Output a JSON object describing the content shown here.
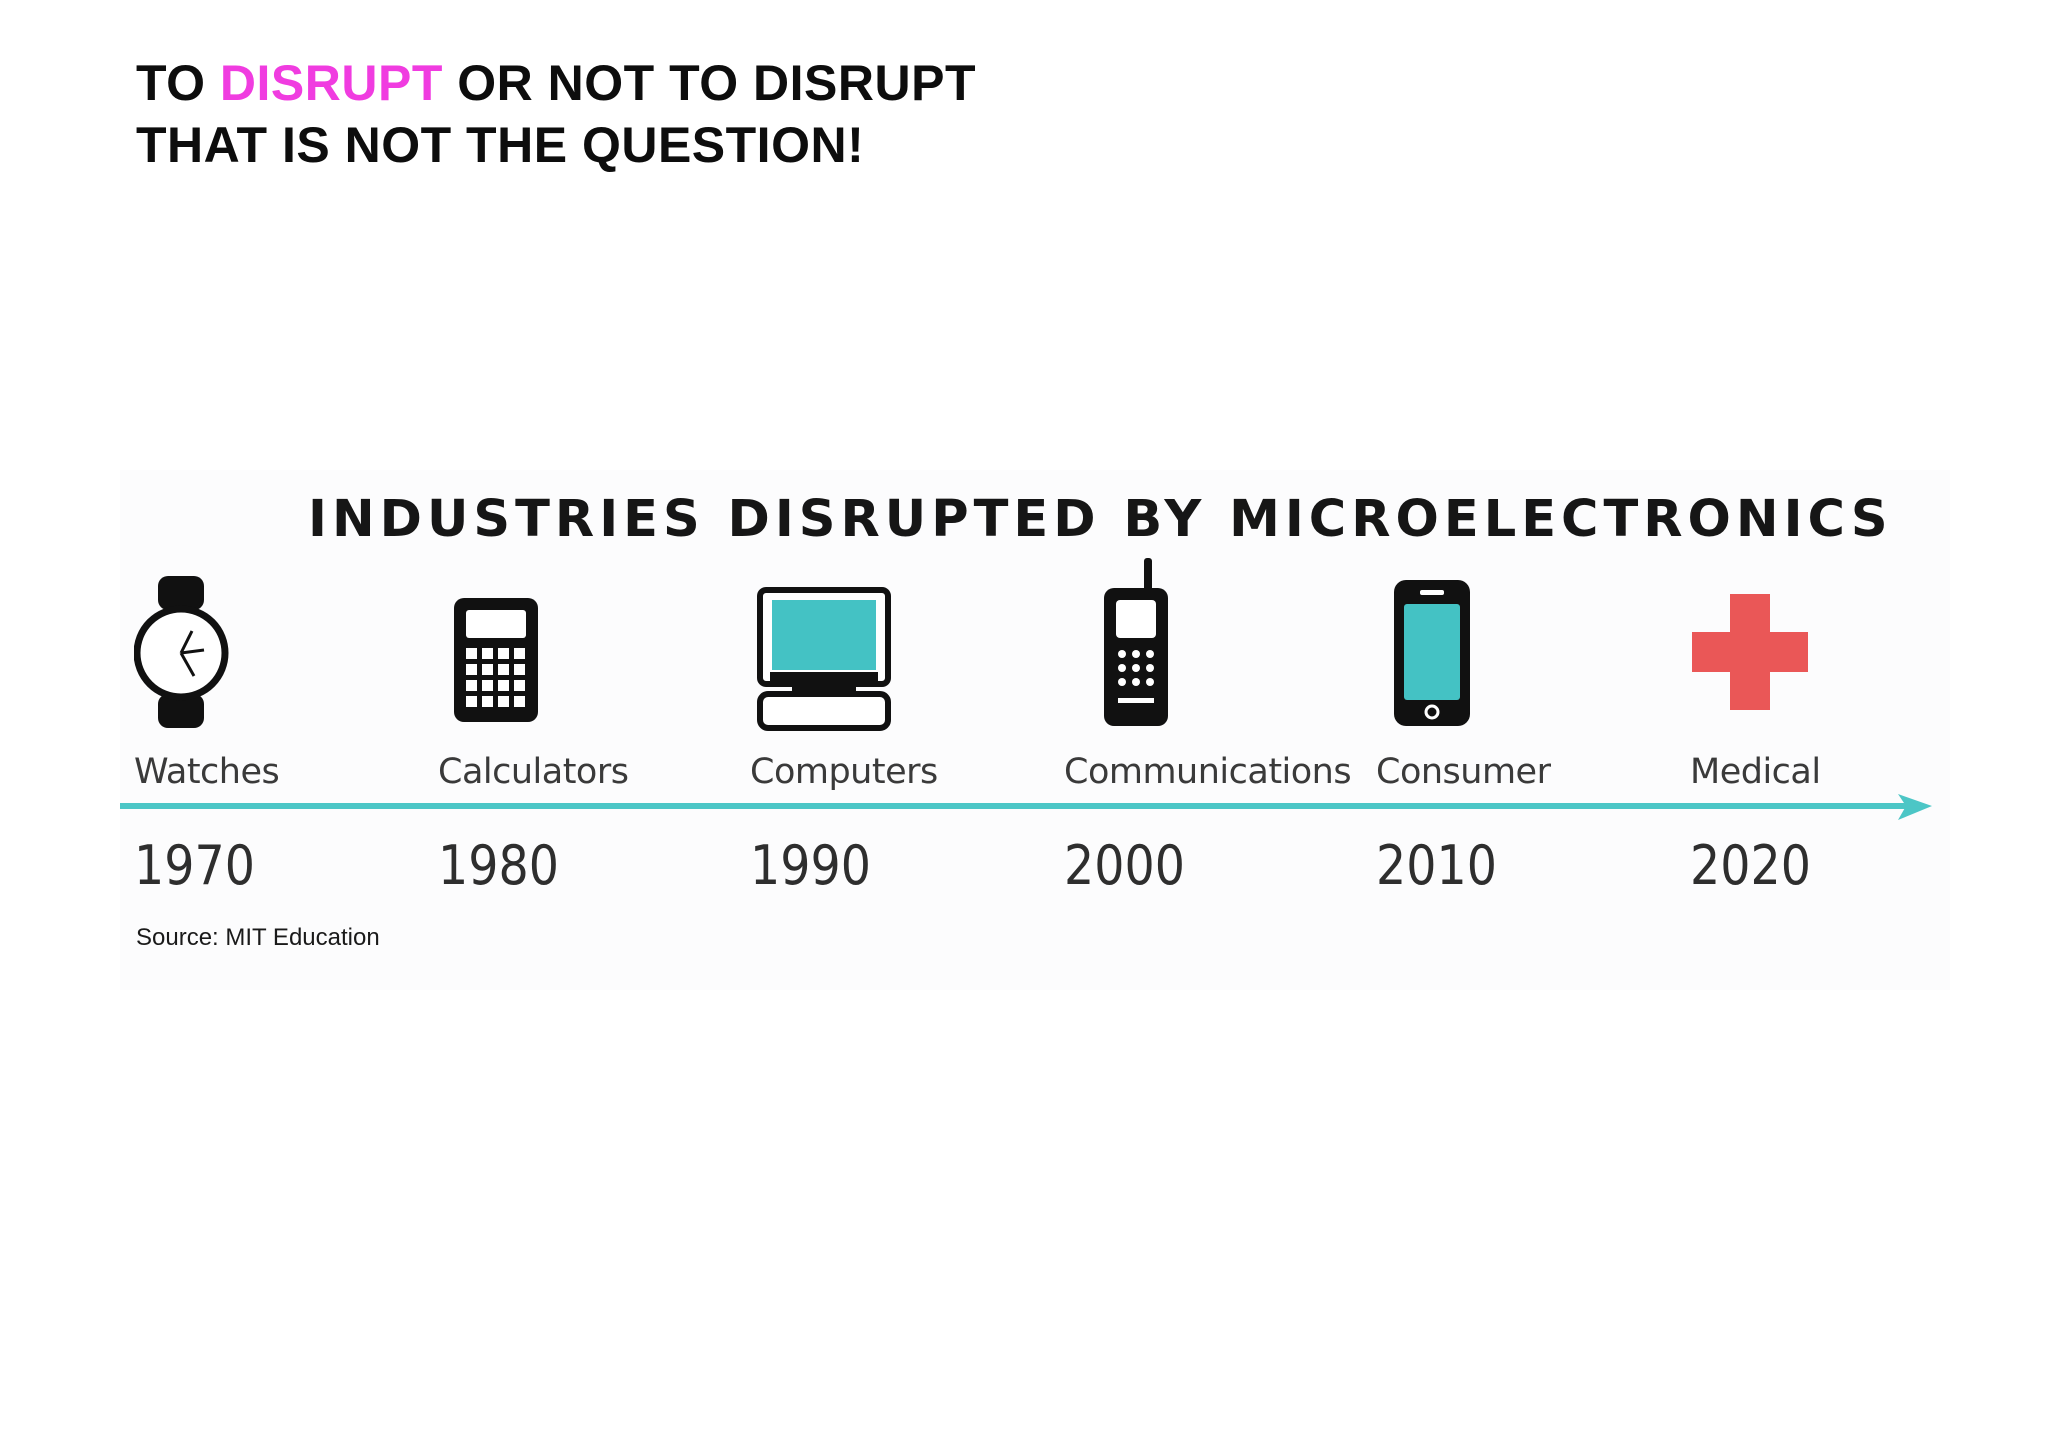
{
  "headline": {
    "line1_pre": "TO ",
    "line1_accent": "DISRUPT",
    "line1_post": " OR NOT TO DISRUPT",
    "line2": "THAT IS NOT THE QUESTION!"
  },
  "graphic": {
    "title": "INDUSTRIES DISRUPTED BY MICROELECTRONICS",
    "milestones": [
      {
        "label": "Watches",
        "year": "1970",
        "icon": "watch-icon"
      },
      {
        "label": "Calculators",
        "year": "1980",
        "icon": "calculator-icon"
      },
      {
        "label": "Computers",
        "year": "1990",
        "icon": "computer-icon"
      },
      {
        "label": "Communications",
        "year": "2000",
        "icon": "cellphone-icon"
      },
      {
        "label": "Consumer",
        "year": "2010",
        "icon": "smartphone-icon"
      },
      {
        "label": "Medical",
        "year": "2020",
        "icon": "medical-cross-icon"
      }
    ]
  },
  "source": "Source: MIT Education",
  "colors": {
    "accent": "#f03ce0",
    "timeline": "#4cc6c6",
    "screen": "#44c2c4",
    "medical": "#ea5757"
  }
}
